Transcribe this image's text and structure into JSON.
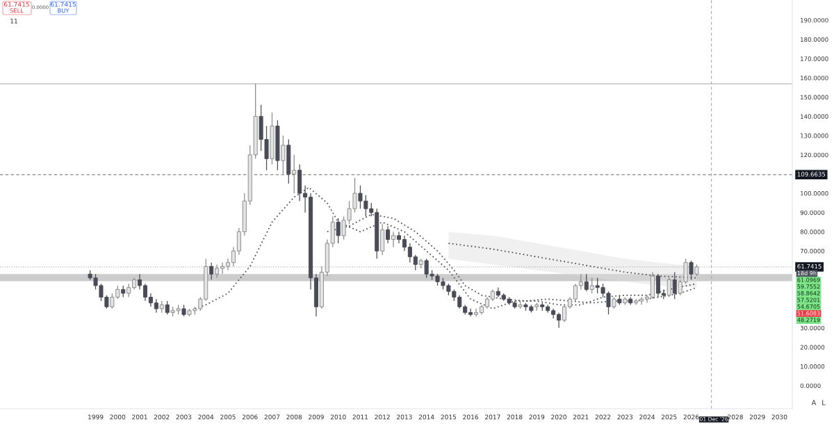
{
  "chart_data": {
    "type": "candlestick",
    "x": [
      "1998-10",
      "1999-01",
      "1999-04",
      "1999-07",
      "1999-10",
      "2000-01",
      "2000-04",
      "2000-07",
      "2000-10",
      "2001-01",
      "2001-04",
      "2001-07",
      "2001-10",
      "2002-01",
      "2002-04",
      "2002-07",
      "2002-10",
      "2003-01",
      "2003-04",
      "2003-07",
      "2003-10",
      "2004-01",
      "2004-04",
      "2004-07",
      "2004-10",
      "2005-01",
      "2005-04",
      "2005-07",
      "2005-10",
      "2006-01",
      "2006-04",
      "2006-07",
      "2006-10",
      "2007-01",
      "2007-04",
      "2007-07",
      "2007-10",
      "2008-01",
      "2008-04",
      "2008-07",
      "2008-10",
      "2009-01",
      "2009-04",
      "2009-07",
      "2009-10",
      "2010-01",
      "2010-04",
      "2010-07",
      "2010-10",
      "2011-01",
      "2011-04",
      "2011-07",
      "2011-10",
      "2012-01",
      "2012-04",
      "2012-07",
      "2012-10",
      "2013-01",
      "2013-04",
      "2013-07",
      "2013-10",
      "2014-01",
      "2014-04",
      "2014-07",
      "2014-10",
      "2015-01",
      "2015-04",
      "2015-07",
      "2015-10",
      "2016-01",
      "2016-04",
      "2016-07",
      "2016-10",
      "2017-01",
      "2017-04",
      "2017-07",
      "2017-10",
      "2018-01",
      "2018-04",
      "2018-07",
      "2018-10",
      "2019-01",
      "2019-04",
      "2019-07",
      "2019-10",
      "2020-01",
      "2020-04",
      "2020-07",
      "2020-10",
      "2021-01",
      "2021-04",
      "2021-07",
      "2021-10",
      "2022-01",
      "2022-04",
      "2022-07",
      "2022-10",
      "2023-01",
      "2023-04",
      "2023-07",
      "2023-10",
      "2024-01",
      "2024-04",
      "2024-07",
      "2024-10",
      "2025-01",
      "2025-04",
      "2025-07",
      "2025-10",
      "2026-01",
      "2026-04"
    ],
    "ohlc": [
      [
        58,
        60,
        55,
        56
      ],
      [
        56,
        58,
        50,
        52
      ],
      [
        52,
        53,
        44,
        46
      ],
      [
        46,
        47,
        40,
        41
      ],
      [
        41,
        48,
        40,
        46
      ],
      [
        46,
        52,
        45,
        50
      ],
      [
        50,
        52,
        46,
        48
      ],
      [
        48,
        53,
        46,
        51
      ],
      [
        51,
        56,
        50,
        55
      ],
      [
        55,
        58,
        50,
        52
      ],
      [
        52,
        53,
        44,
        46
      ],
      [
        46,
        48,
        41,
        43
      ],
      [
        43,
        45,
        38,
        40
      ],
      [
        40,
        44,
        38,
        42
      ],
      [
        42,
        44,
        37,
        38
      ],
      [
        38,
        41,
        36,
        39
      ],
      [
        39,
        42,
        37,
        40
      ],
      [
        40,
        42,
        36,
        37
      ],
      [
        37,
        40,
        36,
        39
      ],
      [
        39,
        41,
        37,
        40
      ],
      [
        40,
        46,
        39,
        45
      ],
      [
        45,
        66,
        44,
        62
      ],
      [
        62,
        64,
        55,
        58
      ],
      [
        58,
        63,
        56,
        61
      ],
      [
        61,
        64,
        58,
        62
      ],
      [
        62,
        66,
        60,
        64
      ],
      [
        64,
        72,
        62,
        70
      ],
      [
        70,
        82,
        68,
        80
      ],
      [
        80,
        100,
        78,
        96
      ],
      [
        96,
        125,
        94,
        120
      ],
      [
        120,
        157,
        118,
        140
      ],
      [
        140,
        146,
        122,
        128
      ],
      [
        128,
        135,
        112,
        118
      ],
      [
        118,
        142,
        115,
        135
      ],
      [
        135,
        138,
        112,
        117
      ],
      [
        117,
        130,
        110,
        125
      ],
      [
        125,
        128,
        105,
        110
      ],
      [
        110,
        120,
        100,
        112
      ],
      [
        112,
        115,
        96,
        100
      ],
      [
        100,
        104,
        90,
        98
      ],
      [
        98,
        100,
        50,
        56
      ],
      [
        56,
        58,
        36,
        41
      ],
      [
        41,
        62,
        40,
        59
      ],
      [
        59,
        76,
        57,
        74
      ],
      [
        74,
        88,
        72,
        85
      ],
      [
        85,
        87,
        74,
        78
      ],
      [
        78,
        88,
        76,
        86
      ],
      [
        86,
        96,
        84,
        92
      ],
      [
        92,
        108,
        90,
        100
      ],
      [
        100,
        104,
        92,
        96
      ],
      [
        96,
        99,
        88,
        92
      ],
      [
        92,
        95,
        88,
        90
      ],
      [
        90,
        92,
        66,
        70
      ],
      [
        70,
        84,
        68,
        81
      ],
      [
        81,
        83,
        74,
        76
      ],
      [
        76,
        80,
        72,
        78
      ],
      [
        78,
        80,
        74,
        76
      ],
      [
        76,
        78,
        70,
        72
      ],
      [
        72,
        74,
        64,
        67
      ],
      [
        67,
        68,
        60,
        63
      ],
      [
        63,
        66,
        61,
        65
      ],
      [
        65,
        66,
        56,
        58
      ],
      [
        58,
        60,
        55,
        57
      ],
      [
        57,
        58,
        52,
        54
      ],
      [
        54,
        56,
        50,
        52
      ],
      [
        52,
        53,
        47,
        49
      ],
      [
        49,
        50,
        44,
        46
      ],
      [
        46,
        47,
        40,
        41
      ],
      [
        41,
        42,
        37,
        38
      ],
      [
        38,
        40,
        36,
        37
      ],
      [
        37,
        40,
        36,
        38
      ],
      [
        38,
        42,
        37,
        41
      ],
      [
        41,
        46,
        40,
        45
      ],
      [
        45,
        50,
        44,
        49
      ],
      [
        49,
        51,
        46,
        47
      ],
      [
        47,
        48,
        44,
        45
      ],
      [
        45,
        46,
        42,
        43
      ],
      [
        43,
        44,
        40,
        41
      ],
      [
        41,
        44,
        40,
        42
      ],
      [
        42,
        43,
        39,
        41
      ],
      [
        41,
        42,
        38,
        39
      ],
      [
        41,
        43,
        39,
        42
      ],
      [
        42,
        43,
        39,
        41
      ],
      [
        41,
        42,
        38,
        39
      ],
      [
        39,
        40,
        35,
        37
      ],
      [
        37,
        38,
        30,
        34
      ],
      [
        34,
        42,
        33,
        41
      ],
      [
        41,
        46,
        40,
        45
      ],
      [
        45,
        53,
        44,
        52
      ],
      [
        52,
        58,
        50,
        54
      ],
      [
        54,
        58,
        49,
        50
      ],
      [
        50,
        56,
        48,
        52
      ],
      [
        52,
        56,
        48,
        51
      ],
      [
        51,
        53,
        46,
        48
      ],
      [
        48,
        49,
        37,
        41
      ],
      [
        41,
        46,
        40,
        45
      ],
      [
        45,
        47,
        42,
        43
      ],
      [
        43,
        46,
        42,
        45
      ],
      [
        45,
        46,
        42,
        43
      ],
      [
        43,
        45,
        42,
        44
      ],
      [
        44,
        46,
        42,
        45
      ],
      [
        45,
        47,
        43,
        46
      ],
      [
        46,
        59,
        45,
        57
      ],
      [
        57,
        58,
        46,
        48
      ],
      [
        48,
        50,
        45,
        47
      ],
      [
        47,
        56,
        46,
        55
      ],
      [
        55,
        59,
        45,
        48
      ],
      [
        48,
        55,
        47,
        54
      ],
      [
        54,
        66,
        53,
        64
      ],
      [
        64,
        65,
        55,
        58
      ],
      [
        58,
        63,
        57,
        61.7415
      ]
    ],
    "series": [
      {
        "type": "line",
        "color": "#555555",
        "x": [
          "2003-07",
          "2004-01",
          "2005-01",
          "2006-01",
          "2007-01",
          "2008-01",
          "2008-09",
          "2009-07",
          "2010-01",
          "2011-01",
          "2012-01",
          "2013-01",
          "2014-01",
          "2015-01",
          "2016-01",
          "2017-01",
          "2018-01",
          "2019-01",
          "2020-01",
          "2021-01",
          "2022-01",
          "2023-01",
          "2024-01",
          "2025-01",
          "2026-04"
        ],
        "values": [
          40,
          42,
          48,
          62,
          85,
          98,
          103,
          95,
          85,
          80,
          85,
          80,
          70,
          60,
          45,
          40,
          44,
          44,
          42,
          42,
          46,
          47,
          47,
          50,
          53
        ]
      },
      {
        "type": "line",
        "color": "#555555",
        "x": [
          "2009-07",
          "2010-07",
          "2011-07",
          "2012-07",
          "2013-07",
          "2014-07",
          "2015-04",
          "2015-10",
          "2016-07",
          "2017-07",
          "2018-07",
          "2019-07",
          "2020-07",
          "2021-07",
          "2022-07",
          "2023-07",
          "2024-07",
          "2025-07",
          "2026-04"
        ],
        "values": [
          80,
          83,
          89,
          87,
          80,
          70,
          60,
          52,
          47,
          45,
          44,
          45,
          44,
          43,
          44,
          44,
          46,
          48,
          51
        ]
      },
      {
        "type": "line",
        "color": "#555555",
        "x": [
          "2015-01",
          "2017-01",
          "2019-01",
          "2021-01",
          "2023-01",
          "2024-07",
          "2026-04"
        ],
        "values": [
          74,
          71,
          67,
          63,
          59,
          57,
          56
        ],
        "lower": [
          66,
          63,
          60,
          57,
          54,
          52,
          51
        ],
        "upper": [
          80,
          78,
          74,
          70,
          66,
          64,
          62
        ]
      }
    ],
    "line_style": "dotted",
    "xlim": [
      "1994-09",
      "2030-08"
    ],
    "xticks": [
      "1999",
      "2000",
      "2001",
      "2002",
      "2003",
      "2004",
      "2005",
      "2006",
      "2007",
      "2008",
      "2009",
      "2010",
      "2011",
      "2012",
      "2013",
      "2014",
      "2015",
      "2016",
      "2017",
      "2018",
      "2019",
      "2020",
      "2021",
      "2022",
      "2023",
      "2024",
      "2025",
      "2026",
      "2028",
      "2029",
      "2030"
    ],
    "ylim": [
      -12,
      200.5
    ],
    "yticks": [
      {
        "value": 0,
        "label": "0.0000"
      },
      {
        "value": 10,
        "label": "10.0000"
      },
      {
        "value": 20,
        "label": "20.0000"
      },
      {
        "value": 30,
        "label": "30.0000"
      },
      {
        "value": 70,
        "label": "70.0000"
      },
      {
        "value": 80,
        "label": "80.0000"
      },
      {
        "value": 90,
        "label": "90.0000"
      },
      {
        "value": 100,
        "label": "100.0000"
      },
      {
        "value": 120,
        "label": "120.0000"
      },
      {
        "value": 130,
        "label": "130.0000"
      },
      {
        "value": 140,
        "label": "140.0000"
      },
      {
        "value": 150,
        "label": "150.0000"
      },
      {
        "value": 160,
        "label": "160.0000"
      },
      {
        "value": 170,
        "label": "170.0000"
      },
      {
        "value": 180,
        "label": "180.0000"
      },
      {
        "value": 190,
        "label": "190.0000"
      }
    ],
    "ref_lines": [
      {
        "axis": "y",
        "value": 156.9,
        "line_style": "solid",
        "color": "#bbbbbb"
      },
      {
        "axis": "y",
        "value": 109.6635,
        "label": "109.6635",
        "line_style": "dashed",
        "color": "#888888"
      },
      {
        "axis": "y",
        "value": 61.7415,
        "label": "61.7415",
        "line_style": "dotted",
        "color": "#999999"
      },
      {
        "axis": "x",
        "value": "2026-12-01",
        "label": "01 Dec '26",
        "line_style": "dashed",
        "color": "#aaaaaa"
      }
    ],
    "bands": [
      {
        "axis": "y",
        "from": 54.3,
        "to": 58.0,
        "color": "#cccccc"
      }
    ],
    "annotations": [
      "18d 9h",
      "61.0969",
      "59.7552",
      "58.8642",
      "57.5201",
      "54.6705",
      "51.6083",
      "48.2719",
      "61.7415",
      "SELL",
      "0.0000",
      "61.7415",
      "BUY",
      "11",
      "A",
      "L"
    ],
    "grid": false,
    "legend": false
  }
}
